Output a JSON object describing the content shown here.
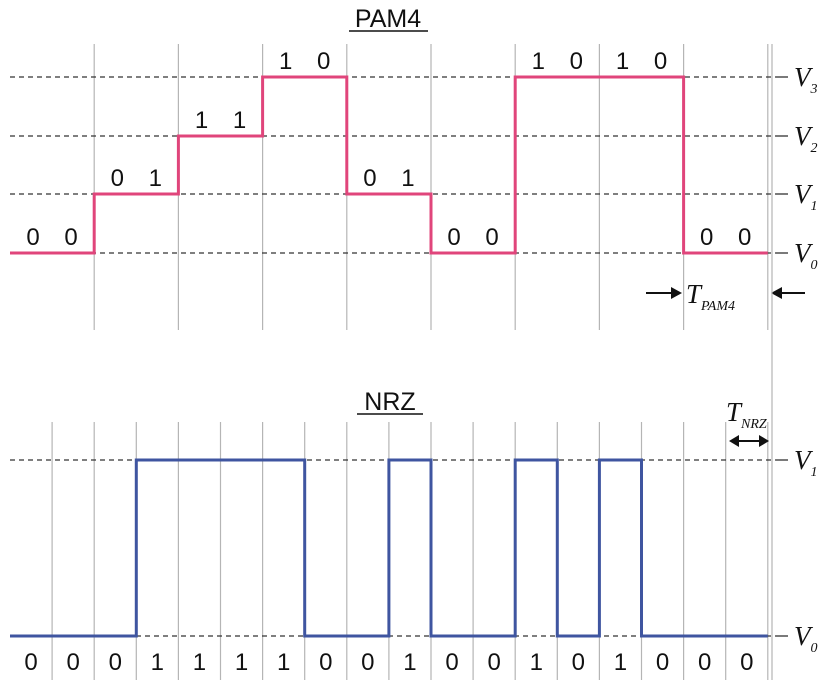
{
  "pam4": {
    "title": "PAM4",
    "levels": [
      "V",
      "V",
      "V",
      "V"
    ],
    "level_subscripts": [
      "0",
      "1",
      "2",
      "3"
    ],
    "symbols": [
      0,
      1,
      2,
      3,
      1,
      0,
      3,
      3,
      0
    ],
    "bit_labels": [
      [
        "0",
        "0"
      ],
      [
        "0",
        "1"
      ],
      [
        "1",
        "1"
      ],
      [
        "1",
        "0"
      ],
      [
        "0",
        "1"
      ],
      [
        "0",
        "0"
      ],
      [
        "1",
        "0"
      ],
      [
        "1",
        "0"
      ],
      [
        "0",
        "0"
      ]
    ],
    "period_label": "T",
    "period_subscript": "PAM4",
    "color": "#e0457b"
  },
  "nrz": {
    "title": "NRZ",
    "levels": [
      "V",
      "V"
    ],
    "level_subscripts": [
      "0",
      "1"
    ],
    "bits": [
      "0",
      "0",
      "0",
      "1",
      "1",
      "1",
      "1",
      "0",
      "0",
      "1",
      "0",
      "0",
      "1",
      "0",
      "1",
      "0",
      "0",
      "0"
    ],
    "period_label": "T",
    "period_subscript": "NRZ",
    "color": "#3f55a0"
  }
}
